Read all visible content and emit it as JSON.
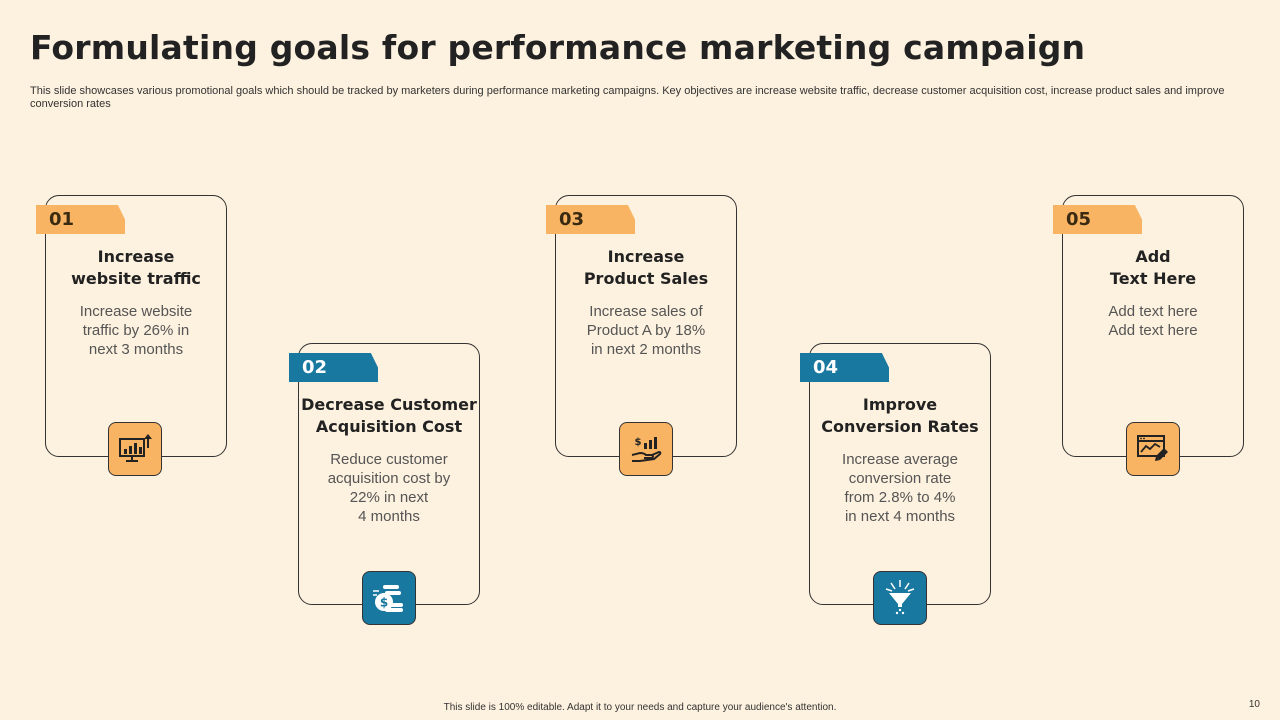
{
  "slide": {
    "title": "Formulating goals for performance marketing campaign",
    "subtitle": "This slide showcases various promotional goals which should be tracked by marketers during performance marketing campaigns. Key objectives are increase website traffic, decrease customer acquisition cost, increase product sales and improve conversion rates",
    "footer": "This slide is 100% editable. Adapt it to your needs and capture your audience's attention.",
    "page_number": "10"
  },
  "cards": [
    {
      "number": "01",
      "title_lines": [
        "Increase",
        "website traffic"
      ],
      "desc_lines": [
        "Increase website",
        "traffic by 26% in",
        "next 3 months"
      ],
      "icon": "chart-growth-icon",
      "color": "#F9B463"
    },
    {
      "number": "02",
      "title_lines": [
        "Decrease Customer",
        "Acquisition Cost"
      ],
      "desc_lines": [
        "Reduce customer",
        "acquisition cost by",
        "22% in next",
        "4 months"
      ],
      "icon": "coins-dollar-icon",
      "color": "#1878A0"
    },
    {
      "number": "03",
      "title_lines": [
        "Increase",
        "Product Sales"
      ],
      "desc_lines": [
        "Increase sales of",
        "Product A by 18%",
        "in next 2 months"
      ],
      "icon": "hand-sales-growth-icon",
      "color": "#F9B463"
    },
    {
      "number": "04",
      "title_lines": [
        "Improve",
        "Conversion Rates"
      ],
      "desc_lines": [
        "Increase average",
        "conversion rate",
        "from 2.8% to 4%",
        "in next 4 months"
      ],
      "icon": "funnel-icon",
      "color": "#1878A0"
    },
    {
      "number": "05",
      "title_lines": [
        "Add",
        "Text Here"
      ],
      "desc_lines": [
        "Add text here",
        "Add text here"
      ],
      "icon": "browser-analytics-icon",
      "color": "#F9B463"
    }
  ]
}
